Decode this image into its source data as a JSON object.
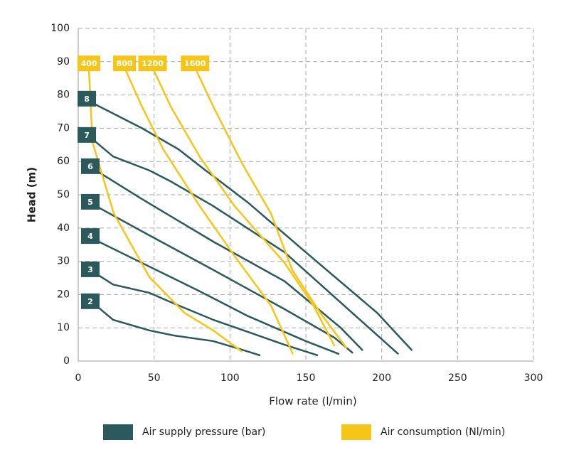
{
  "chart_data": {
    "type": "line",
    "xlabel": "Flow rate (l/min)",
    "ylabel": "Head (m)",
    "xlim": [
      0,
      300
    ],
    "xticks": [
      0,
      50,
      100,
      150,
      200,
      250,
      300
    ],
    "ylim": [
      0,
      100
    ],
    "yticks": [
      0,
      10,
      20,
      30,
      40,
      50,
      60,
      70,
      80,
      90,
      100
    ],
    "grid": true,
    "legend": [
      {
        "label": "Air supply pressure (bar)",
        "color": "#2a5a5c"
      },
      {
        "label": "Air consumption (Nl/min)",
        "color": "#f5c518"
      }
    ],
    "series": [
      {
        "name": "2",
        "color": "#2a5a5c",
        "x": [
          11.7,
          23,
          47,
          63,
          89,
          108,
          120
        ],
        "values": [
          16.7,
          12.4,
          9.2,
          7.7,
          6,
          3.4,
          1.7
        ]
      },
      {
        "name": "3",
        "color": "#2a5a5c",
        "x": [
          11.7,
          23,
          47,
          61,
          89,
          136,
          158
        ],
        "values": [
          26.3,
          23,
          20.5,
          17.7,
          12.4,
          4.9,
          1.7
        ]
      },
      {
        "name": "4",
        "color": "#2a5a5c",
        "x": [
          11.7,
          42,
          80,
          112,
          150,
          172
        ],
        "values": [
          36.3,
          29.5,
          21,
          13.5,
          6,
          2.1
        ]
      },
      {
        "name": "5",
        "color": "#2a5a5c",
        "x": [
          11.7,
          42,
          89,
          136,
          169,
          181
        ],
        "values": [
          46.6,
          39,
          27.4,
          15.6,
          7,
          2.4
        ]
      },
      {
        "name": "6",
        "color": "#2a5a5c",
        "x": [
          11.7,
          42,
          89,
          136,
          173,
          187.5
        ],
        "values": [
          57.3,
          48.7,
          35.9,
          24,
          10,
          3.2
        ]
      },
      {
        "name": "7",
        "color": "#2a5a5c",
        "x": [
          9.4,
          23,
          47,
          61,
          89,
          136,
          183,
          211
        ],
        "values": [
          66.7,
          61.5,
          57.3,
          54,
          46.6,
          32.7,
          13.5,
          2.1
        ]
      },
      {
        "name": "8",
        "color": "#2a5a5c",
        "x": [
          9.4,
          42,
          66,
          84,
          89,
          112,
          150,
          197,
          220
        ],
        "values": [
          77.6,
          70,
          63.7,
          57.3,
          55.6,
          47.6,
          32.7,
          14.5,
          3.2
        ]
      },
      {
        "name": "400",
        "color": "#f5c518",
        "x": [
          7,
          9.4,
          23.4,
          47,
          70,
          89,
          108
        ],
        "values": [
          88.2,
          65.8,
          44.4,
          25.2,
          14.5,
          9.2,
          2.8
        ]
      },
      {
        "name": "800",
        "color": "#f5c518",
        "x": [
          30.5,
          42,
          56,
          80,
          103,
          127,
          141.5
        ],
        "values": [
          88.2,
          76.5,
          63.7,
          46.6,
          31.6,
          16.7,
          2.1
        ]
      },
      {
        "name": "1200",
        "color": "#f5c518",
        "x": [
          49,
          61,
          80,
          103,
          136,
          155,
          169
        ],
        "values": [
          88.2,
          76.5,
          61.5,
          46.6,
          29.5,
          16.7,
          4.5
        ]
      },
      {
        "name": "1600",
        "color": "#f5c518",
        "x": [
          77,
          89,
          108,
          127,
          141,
          159.5,
          177
        ],
        "values": [
          88.2,
          76.5,
          59.4,
          44.4,
          27.4,
          14.5,
          3.8
        ]
      }
    ]
  }
}
